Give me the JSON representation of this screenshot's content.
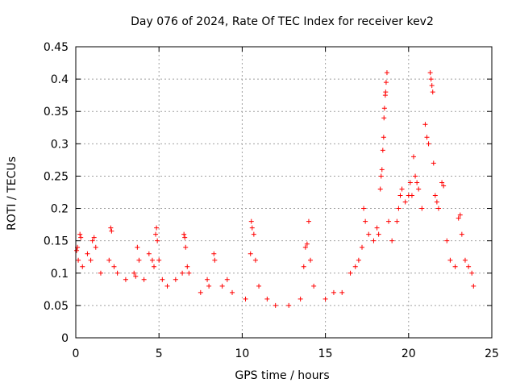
{
  "chart_data": {
    "type": "scatter",
    "title": "Day 076 of 2024, Rate Of TEC Index for receiver kev2",
    "xlabel": "GPS time / hours",
    "ylabel": "ROTI / TECUs",
    "xlim": [
      0,
      25
    ],
    "ylim": [
      0,
      0.45
    ],
    "x_ticks": [
      0,
      5,
      10,
      15,
      20,
      25
    ],
    "y_ticks": [
      0,
      0.05,
      0.1,
      0.15,
      0.2,
      0.25,
      0.3,
      0.35,
      0.4,
      0.45
    ],
    "x_tick_labels": [
      "0",
      "5",
      "10",
      "15",
      "20",
      "25"
    ],
    "y_tick_labels": [
      "0",
      "0.05",
      "0.1",
      "0.15",
      "0.2",
      "0.25",
      "0.3",
      "0.35",
      "0.4",
      "0.45"
    ],
    "grid": true,
    "marker": "+",
    "color": "#ff0000",
    "series": [
      {
        "name": "ROTI",
        "points": [
          [
            0.05,
            0.135
          ],
          [
            0.1,
            0.14
          ],
          [
            0.25,
            0.16
          ],
          [
            0.3,
            0.155
          ],
          [
            0.15,
            0.12
          ],
          [
            0.4,
            0.11
          ],
          [
            0.7,
            0.13
          ],
          [
            0.9,
            0.12
          ],
          [
            1.0,
            0.15
          ],
          [
            1.1,
            0.155
          ],
          [
            1.2,
            0.14
          ],
          [
            1.5,
            0.1
          ],
          [
            2.0,
            0.12
          ],
          [
            2.1,
            0.17
          ],
          [
            2.15,
            0.165
          ],
          [
            2.3,
            0.11
          ],
          [
            2.5,
            0.1
          ],
          [
            3.0,
            0.09
          ],
          [
            3.5,
            0.1
          ],
          [
            3.6,
            0.095
          ],
          [
            3.7,
            0.14
          ],
          [
            3.8,
            0.12
          ],
          [
            4.1,
            0.09
          ],
          [
            4.4,
            0.13
          ],
          [
            4.6,
            0.12
          ],
          [
            4.7,
            0.11
          ],
          [
            4.8,
            0.16
          ],
          [
            4.85,
            0.17
          ],
          [
            4.9,
            0.15
          ],
          [
            5.0,
            0.12
          ],
          [
            5.2,
            0.09
          ],
          [
            5.5,
            0.08
          ],
          [
            6.0,
            0.09
          ],
          [
            6.4,
            0.1
          ],
          [
            6.5,
            0.16
          ],
          [
            6.55,
            0.155
          ],
          [
            6.6,
            0.14
          ],
          [
            6.7,
            0.11
          ],
          [
            6.8,
            0.1
          ],
          [
            7.5,
            0.07
          ],
          [
            7.9,
            0.09
          ],
          [
            8.0,
            0.08
          ],
          [
            8.3,
            0.13
          ],
          [
            8.35,
            0.12
          ],
          [
            8.8,
            0.08
          ],
          [
            9.1,
            0.09
          ],
          [
            9.4,
            0.07
          ],
          [
            10.2,
            0.06
          ],
          [
            10.5,
            0.13
          ],
          [
            10.55,
            0.18
          ],
          [
            10.6,
            0.17
          ],
          [
            10.7,
            0.16
          ],
          [
            10.8,
            0.12
          ],
          [
            11.0,
            0.08
          ],
          [
            11.5,
            0.06
          ],
          [
            12.0,
            0.05
          ],
          [
            12.8,
            0.05
          ],
          [
            13.5,
            0.06
          ],
          [
            13.7,
            0.11
          ],
          [
            13.8,
            0.14
          ],
          [
            13.9,
            0.145
          ],
          [
            14.0,
            0.18
          ],
          [
            14.1,
            0.12
          ],
          [
            14.3,
            0.08
          ],
          [
            15.0,
            0.06
          ],
          [
            15.5,
            0.07
          ],
          [
            16.0,
            0.07
          ],
          [
            16.5,
            0.1
          ],
          [
            16.8,
            0.11
          ],
          [
            17.0,
            0.12
          ],
          [
            17.2,
            0.14
          ],
          [
            17.3,
            0.2
          ],
          [
            17.4,
            0.18
          ],
          [
            17.6,
            0.16
          ],
          [
            17.9,
            0.15
          ],
          [
            18.1,
            0.17
          ],
          [
            18.2,
            0.16
          ],
          [
            18.3,
            0.23
          ],
          [
            18.35,
            0.25
          ],
          [
            18.4,
            0.26
          ],
          [
            18.45,
            0.29
          ],
          [
            18.5,
            0.31
          ],
          [
            18.52,
            0.34
          ],
          [
            18.55,
            0.355
          ],
          [
            18.6,
            0.375
          ],
          [
            18.62,
            0.38
          ],
          [
            18.65,
            0.395
          ],
          [
            18.7,
            0.41
          ],
          [
            18.8,
            0.18
          ],
          [
            19.0,
            0.15
          ],
          [
            19.3,
            0.18
          ],
          [
            19.4,
            0.2
          ],
          [
            19.5,
            0.22
          ],
          [
            19.6,
            0.23
          ],
          [
            19.8,
            0.21
          ],
          [
            20.0,
            0.22
          ],
          [
            20.1,
            0.24
          ],
          [
            20.2,
            0.22
          ],
          [
            20.3,
            0.28
          ],
          [
            20.4,
            0.25
          ],
          [
            20.5,
            0.24
          ],
          [
            20.6,
            0.23
          ],
          [
            20.8,
            0.2
          ],
          [
            21.0,
            0.33
          ],
          [
            21.1,
            0.31
          ],
          [
            21.2,
            0.3
          ],
          [
            21.3,
            0.41
          ],
          [
            21.35,
            0.4
          ],
          [
            21.4,
            0.39
          ],
          [
            21.45,
            0.38
          ],
          [
            21.5,
            0.27
          ],
          [
            21.6,
            0.22
          ],
          [
            21.7,
            0.21
          ],
          [
            21.8,
            0.2
          ],
          [
            22.0,
            0.24
          ],
          [
            22.1,
            0.235
          ],
          [
            22.3,
            0.15
          ],
          [
            22.5,
            0.12
          ],
          [
            22.8,
            0.11
          ],
          [
            23.0,
            0.185
          ],
          [
            23.1,
            0.19
          ],
          [
            23.2,
            0.16
          ],
          [
            23.4,
            0.12
          ],
          [
            23.6,
            0.11
          ],
          [
            23.8,
            0.1
          ],
          [
            23.9,
            0.08
          ]
        ]
      }
    ]
  }
}
